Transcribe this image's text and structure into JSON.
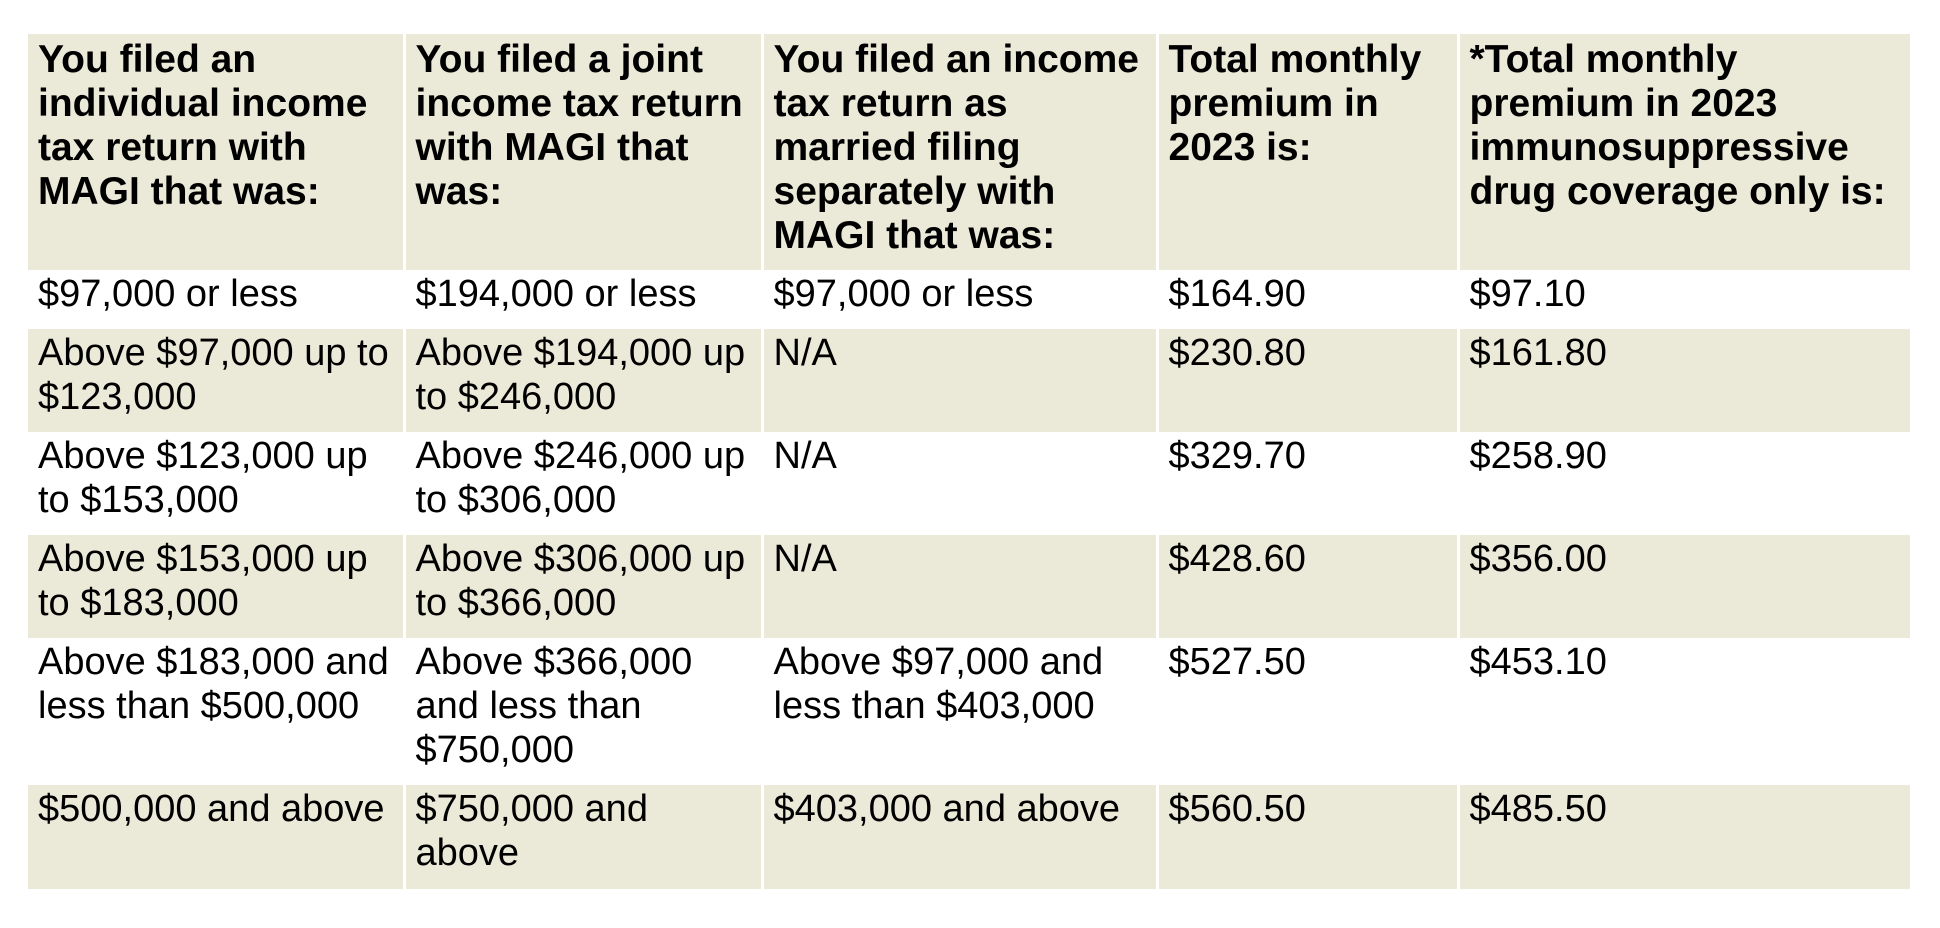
{
  "colors": {
    "header_bg": "#ebe9d8",
    "band_bg": "#ebe9d8",
    "plain_bg": "#ffffff",
    "text": "#000000"
  },
  "table": {
    "headers": [
      "You filed an individual income tax return with MAGI that was:",
      "You filed a joint income tax return with MAGI that was:",
      "You filed an income tax return as married filing separately with MAGI that was:",
      "Total monthly premium in 2023 is:",
      "*Total monthly premium in 2023 immunosuppressive drug coverage only is:"
    ],
    "rows": [
      [
        "$97,000 or less",
        "$194,000 or less",
        "$97,000 or less",
        "$164.90",
        "$97.10"
      ],
      [
        "Above $97,000 up to $123,000",
        "Above $194,000 up to $246,000",
        "N/A",
        "$230.80",
        "$161.80"
      ],
      [
        "Above $123,000 up to $153,000",
        "Above $246,000 up to $306,000",
        "N/A",
        "$329.70",
        "$258.90"
      ],
      [
        "Above $153,000 up to $183,000",
        "Above $306,000 up to $366,000",
        "N/A",
        "$428.60",
        "$356.00"
      ],
      [
        "Above $183,000 and less than $500,000",
        "Above $366,000 and less than $750,000",
        "Above $97,000 and less than $403,000",
        "$527.50",
        "$453.10"
      ],
      [
        "$500,000 and above",
        "$750,000 and above",
        "$403,000 and above",
        "$560.50",
        "$485.50"
      ]
    ]
  }
}
